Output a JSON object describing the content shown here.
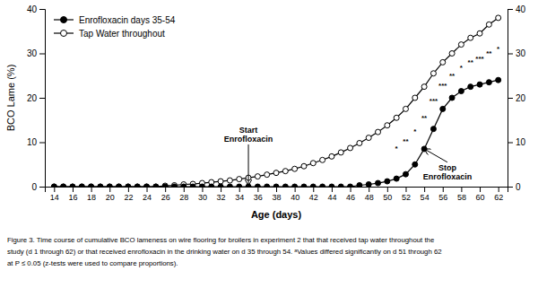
{
  "chart_data": {
    "type": "line",
    "xlabel": "Age (days)",
    "ylabel": "BCO Lame (%)",
    "xlim": [
      13,
      63
    ],
    "ylim": [
      0,
      40
    ],
    "y2lim": [
      0,
      40
    ],
    "xticks": [
      14,
      16,
      18,
      20,
      22,
      24,
      26,
      28,
      30,
      32,
      34,
      36,
      38,
      40,
      42,
      44,
      46,
      48,
      50,
      52,
      54,
      56,
      58,
      60,
      62
    ],
    "yticks": [
      0,
      10,
      20,
      30,
      40
    ],
    "y2ticks": [
      0,
      10,
      20,
      30,
      40
    ],
    "grid": false,
    "legend": "upper-left",
    "x": [
      14,
      15,
      16,
      17,
      18,
      19,
      20,
      21,
      22,
      23,
      24,
      25,
      26,
      27,
      28,
      29,
      30,
      31,
      32,
      33,
      34,
      35,
      36,
      37,
      38,
      39,
      40,
      41,
      42,
      43,
      44,
      45,
      46,
      47,
      48,
      49,
      50,
      51,
      52,
      53,
      54,
      55,
      56,
      57,
      58,
      59,
      60,
      61,
      62
    ],
    "series": [
      {
        "name": "Enrofloxacin days 35-54",
        "color": "#000000",
        "marker": "circle",
        "values": [
          0.0,
          0.0,
          0.0,
          0.0,
          0.0,
          0.0,
          0.0,
          0.0,
          0.0,
          0.0,
          0.0,
          0.0,
          0.0,
          0.0,
          0.0,
          0.0,
          0.0,
          0.0,
          0.0,
          0.0,
          0.0,
          0.0,
          0.0,
          0.0,
          0.0,
          0.0,
          0.0,
          0.0,
          0.0,
          0.0,
          0.0,
          0.0,
          0.0,
          0.3,
          0.5,
          0.8,
          1.2,
          1.8,
          2.8,
          5.0,
          8.5,
          13.0,
          17.5,
          20.0,
          21.5,
          22.5,
          23.0,
          23.5,
          24.0
        ]
      },
      {
        "name": "Tap Water throughout",
        "color": "#000000",
        "marker": "open-circle",
        "values": [
          0.0,
          0.0,
          0.0,
          0.0,
          0.0,
          0.0,
          0.0,
          0.0,
          0.0,
          0.0,
          0.0,
          0.0,
          0.2,
          0.3,
          0.5,
          0.6,
          0.8,
          1.0,
          1.2,
          1.4,
          1.7,
          2.0,
          2.3,
          2.7,
          3.1,
          3.5,
          4.0,
          4.6,
          5.3,
          6.0,
          6.8,
          7.7,
          8.7,
          9.8,
          11.0,
          12.3,
          13.8,
          15.5,
          17.5,
          20.0,
          22.5,
          25.5,
          28.0,
          30.0,
          32.0,
          33.5,
          34.5,
          36.5,
          38.0
        ]
      }
    ],
    "annotations": [
      {
        "text": "Start\nEnrofloxacin",
        "x": 35,
        "y": 0.2,
        "text_x": 35,
        "text_y": 9.5
      },
      {
        "text": "Stop\nEnrofloxacin",
        "x": 54,
        "y": 8.5,
        "text_x": 56.5,
        "text_y": 5.5
      },
      {
        "text": "*",
        "x": 51,
        "y": 8.65
      },
      {
        "text": "**",
        "x": 52,
        "y": 10.15
      },
      {
        "text": "*",
        "x": 53,
        "y": 12.5
      },
      {
        "text": "**",
        "x": 54,
        "y": 15.5
      },
      {
        "text": "***",
        "x": 55,
        "y": 19.25
      },
      {
        "text": "***",
        "x": 56,
        "y": 22.75
      },
      {
        "text": "**",
        "x": 57,
        "y": 25
      },
      {
        "text": "*",
        "x": 58,
        "y": 26.75
      },
      {
        "text": "**",
        "x": 59,
        "y": 28
      },
      {
        "text": "***",
        "x": 60,
        "y": 28.75
      },
      {
        "text": "**",
        "x": 61,
        "y": 30
      },
      {
        "text": "*",
        "x": 62,
        "y": 31
      }
    ],
    "caption": "Figure 3. Time course of cumulative BCO lameness on wire flooring for broilers in experiment 2 that that received tap water throughout the\nstudy (d 1 through 62) or that received enrofloxacin in the drinking water on d 35 through 54. ᵃValues differed significantly on d 51 through 62\nat P ≤ 0.05 (z-tests were used to compare proportions)."
  }
}
